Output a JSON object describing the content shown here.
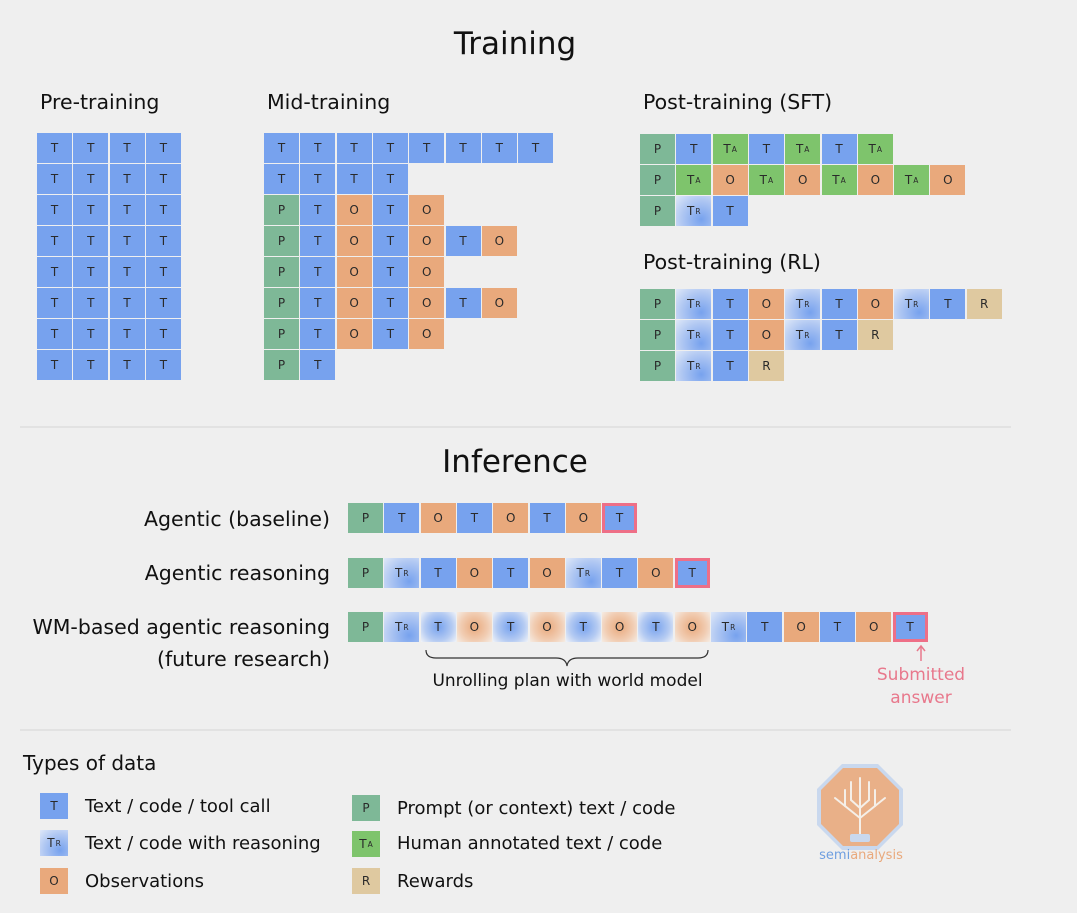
{
  "title_training": "Training",
  "sections": {
    "pre": "Pre-training",
    "mid": "Mid-training",
    "sft": "Post-training (SFT)",
    "rl": "Post-training (RL)"
  },
  "title_inference": "Inference",
  "inference_rows": {
    "baseline": "Agentic (baseline)",
    "reasoning": "Agentic reasoning",
    "wm_line1": "WM-based agentic reasoning",
    "wm_line2": "(future research)"
  },
  "annotations": {
    "brace_label": "Unrolling plan with world model",
    "submitted_line1": "Submitted",
    "submitted_line2": "answer"
  },
  "legend": {
    "title": "Types of data",
    "items": [
      {
        "token": "T",
        "sub": "",
        "label": "Text / code / tool call"
      },
      {
        "token": "T",
        "sub": "R",
        "label": "Text / code with reasoning"
      },
      {
        "token": "O",
        "sub": "",
        "label": "Observations"
      },
      {
        "token": "P",
        "sub": "",
        "label": "Prompt (or context)  text / code"
      },
      {
        "token": "T",
        "sub": "A",
        "label": "Human annotated text / code"
      },
      {
        "token": "R",
        "sub": "",
        "label": "Rewards"
      }
    ]
  },
  "logo": {
    "part1": "semi",
    "part2": "analysis"
  },
  "colors": {
    "text_token": "#77a2ee",
    "prompt_token": "#7eb897",
    "observation_token": "#e9a97c",
    "human_annotated_token": "#7ec46c",
    "reward_token": "#dfc9a0",
    "submitted_highlight": "#ee6f87"
  },
  "sequences": {
    "pre": [
      "TTTT",
      "TTTT",
      "TTTT",
      "TTTT",
      "TTTT",
      "TTTT",
      "TTTT",
      "TTTT"
    ],
    "mid": [
      "TTTTTTTT",
      "TTTT",
      "PTOTO",
      "PTOTOTO",
      "PTOTO",
      "PTOTOTO",
      "PTOTO",
      "PT"
    ],
    "sft": [
      "PTATATA",
      "PAOAOAOAO",
      "PXT"
    ],
    "rl": [
      "PXTOXTOXTR",
      "PXTOXTR",
      "PXTR"
    ],
    "inf_baseline": "PTOTOTOT",
    "inf_reasoning": "PXTOTOXTOT",
    "inf_wm": "PXTOTOTOTOXTOTOT"
  },
  "token_text": {
    "T": {
      "t": "T",
      "s": ""
    },
    "P": {
      "t": "P",
      "s": ""
    },
    "O": {
      "t": "O",
      "s": ""
    },
    "A": {
      "t": "T",
      "s": "A"
    },
    "R": {
      "t": "R",
      "s": ""
    },
    "X": {
      "t": "T",
      "s": "R"
    }
  }
}
